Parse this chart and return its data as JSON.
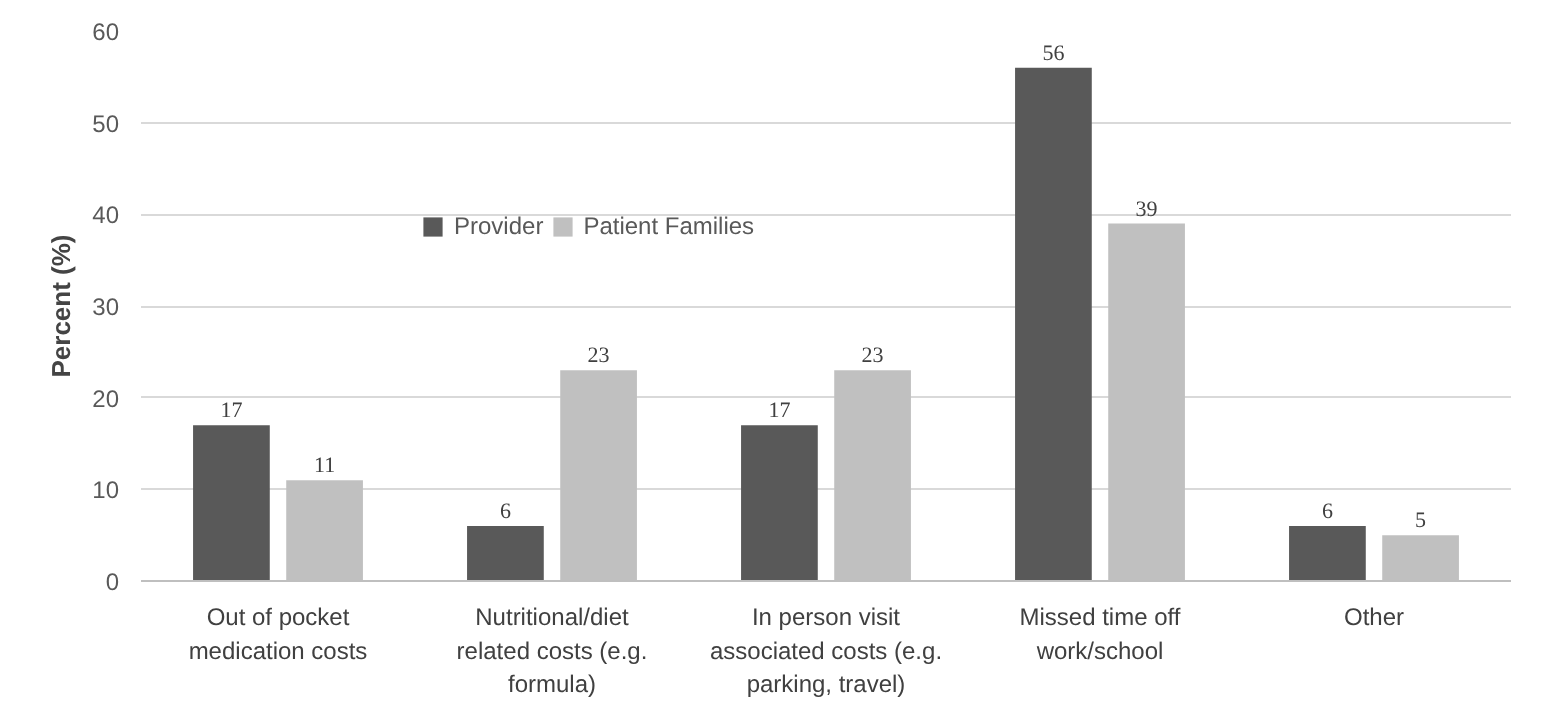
{
  "chart_data": {
    "type": "bar",
    "ylabel": "Percent (%)",
    "categories": [
      "Out of pocket medication costs",
      "Nutritional/diet related costs (e.g. formula)",
      "In person visit associated costs (e.g. parking, travel)",
      "Missed time off work/school",
      "Other"
    ],
    "series": [
      {
        "name": "Provider",
        "color": "#595959",
        "values": [
          17,
          6,
          17,
          56,
          6
        ]
      },
      {
        "name": "Patient Families",
        "color": "#c0c0c0",
        "values": [
          11,
          23,
          23,
          39,
          5
        ]
      }
    ],
    "ylim": [
      0,
      60
    ],
    "yticks": [
      0,
      10,
      20,
      30,
      40,
      50,
      60
    ],
    "grid": "y",
    "legend": "top left",
    "data_labels": true
  }
}
